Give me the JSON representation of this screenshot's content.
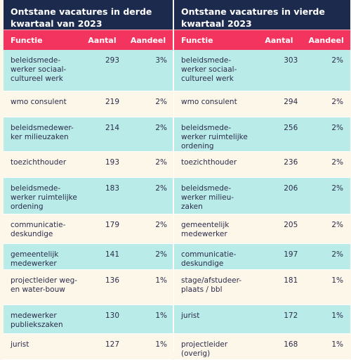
{
  "tables": [
    {
      "title": "Ontstane vacatures in derde kwartaal van 2023",
      "headers": [
        "Functie",
        "Aantal",
        "Aandeel"
      ],
      "rows": [
        {
          "functie": "beleidsmede-werker sociaal-cultureel werk",
          "aantal": "293",
          "aandeel": "3%"
        },
        {
          "functie": "wmo consulent",
          "aantal": "219",
          "aandeel": "2%"
        },
        {
          "functie": "beleidsmedewer-ker milieuzaken",
          "aantal": "214",
          "aandeel": "2%"
        },
        {
          "functie": "toezichthouder",
          "aantal": "193",
          "aandeel": "2%"
        },
        {
          "functie": "beleidsmede-werker ruimtelijke ordening",
          "aantal": "183",
          "aandeel": "2%"
        },
        {
          "functie": "communicatie-deskundige",
          "aantal": "179",
          "aandeel": "2%"
        },
        {
          "functie": "gemeentelijk medewerker",
          "aantal": "141",
          "aandeel": "2%"
        },
        {
          "functie": "projectleider weg- en water-bouw",
          "aantal": "136",
          "aandeel": "1%"
        },
        {
          "functie": "medewerker publiekszaken",
          "aantal": "130",
          "aandeel": "1%"
        },
        {
          "functie": "jurist",
          "aantal": "127",
          "aandeel": "1%"
        }
      ]
    },
    {
      "title": "Ontstane vacatures in vierde kwartaal 2023",
      "headers": [
        "Functie",
        "Aantal",
        "Aandeel"
      ],
      "rows": [
        {
          "functie": "beleidsmede-werker sociaal-cultureel werk",
          "aantal": "303",
          "aandeel": "2%"
        },
        {
          "functie": "wmo consulent",
          "aantal": "294",
          "aandeel": "2%"
        },
        {
          "functie": "beleidsmede-werker ruimtelijke ordening",
          "aantal": "256",
          "aandeel": "2%"
        },
        {
          "functie": "toezichthouder",
          "aantal": "236",
          "aandeel": "2%"
        },
        {
          "functie": "beleidsmede-werker milieu-zaken",
          "aantal": "206",
          "aandeel": "2%"
        },
        {
          "functie": "gemeentelijk medewerker",
          "aantal": "205",
          "aandeel": "2%"
        },
        {
          "functie": "communicatie-deskundige",
          "aantal": "197",
          "aandeel": "2%"
        },
        {
          "functie": "stage/afstudeer-plaats / bbl",
          "aantal": "181",
          "aandeel": "1%"
        },
        {
          "functie": "jurist",
          "aantal": "172",
          "aandeel": "1%"
        },
        {
          "functie": "projectleider (overig)",
          "aantal": "168",
          "aandeel": "1%"
        }
      ]
    }
  ],
  "colors": {
    "title_bg": "#1c2a4d",
    "header_bg": "#f2345e",
    "row_alt_bg": "#b9ece8",
    "row_plain_bg": "#fdf7ea"
  }
}
